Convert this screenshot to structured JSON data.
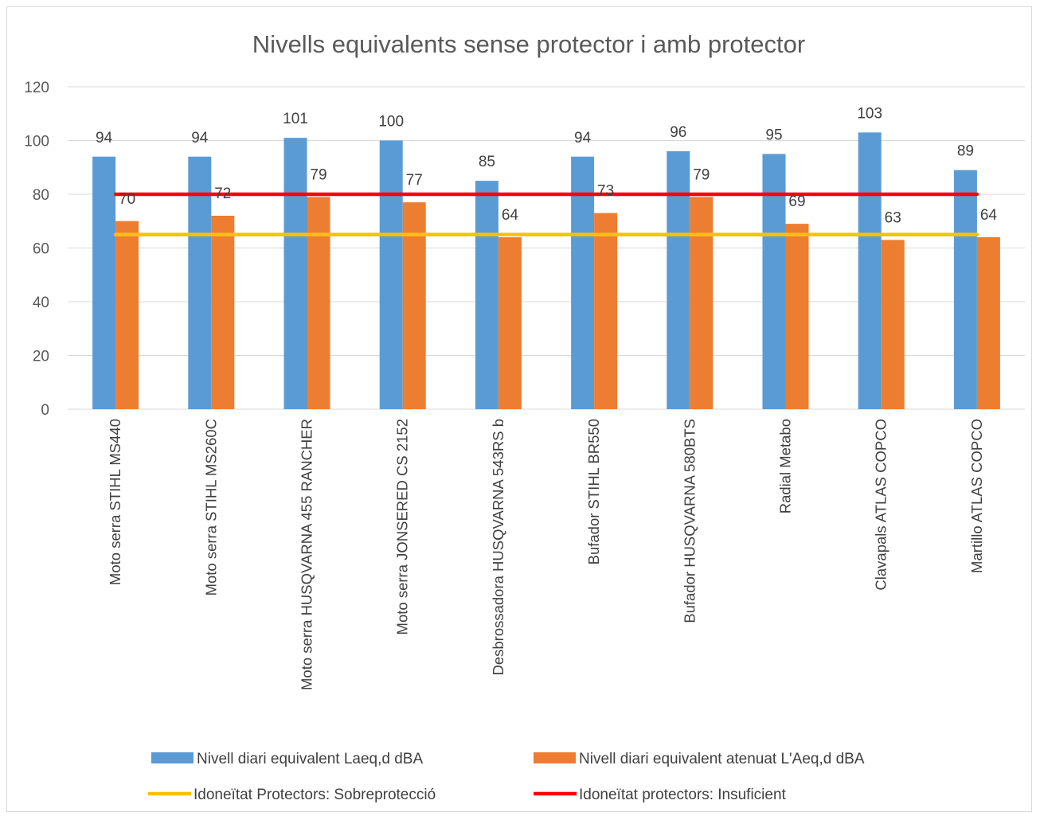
{
  "chart_data": {
    "type": "bar",
    "title": "Nivells equivalents sense protector i amb protector",
    "categories": [
      "Moto serra STIHL MS440",
      "Moto serra STIHL MS260C",
      "Moto serra HUSQVARNA 455 RANCHER",
      "Moto serra JONSERED CS 2152",
      "Desbrossadora HUSQVARNA  543RS b",
      "Bufador STIHL BR550",
      "Bufador HUSQVARNA  580BTS",
      "Radial Metabo",
      "Clavapals ATLAS COPCO",
      "Martillo ATLAS COPCO"
    ],
    "series": [
      {
        "name": "Nivell diari equivalent Laeq,d dBA",
        "type": "bar",
        "color": "#5b9bd5",
        "values": [
          94,
          94,
          101,
          100,
          85,
          94,
          96,
          95,
          103,
          89
        ]
      },
      {
        "name": "Nivell diari equivalent atenuat L'Aeq,d dBA",
        "type": "bar",
        "color": "#ed7d31",
        "values": [
          70,
          72,
          79,
          77,
          64,
          73,
          79,
          69,
          63,
          64
        ]
      },
      {
        "name": "Idoneïtat Protectors: Sobreprotecció",
        "type": "line",
        "color": "#ffc000",
        "values": [
          65,
          65,
          65,
          65,
          65,
          65,
          65,
          65,
          65,
          65
        ]
      },
      {
        "name": "Idoneïtat protectors: Insuficient",
        "type": "line",
        "color": "#ff0000",
        "values": [
          80,
          80,
          80,
          80,
          80,
          80,
          80,
          80,
          80,
          80
        ]
      }
    ],
    "ylim": [
      0,
      120
    ],
    "yticks": [
      0,
      20,
      40,
      60,
      80,
      100,
      120
    ],
    "grid": true,
    "legend_position": "bottom"
  }
}
